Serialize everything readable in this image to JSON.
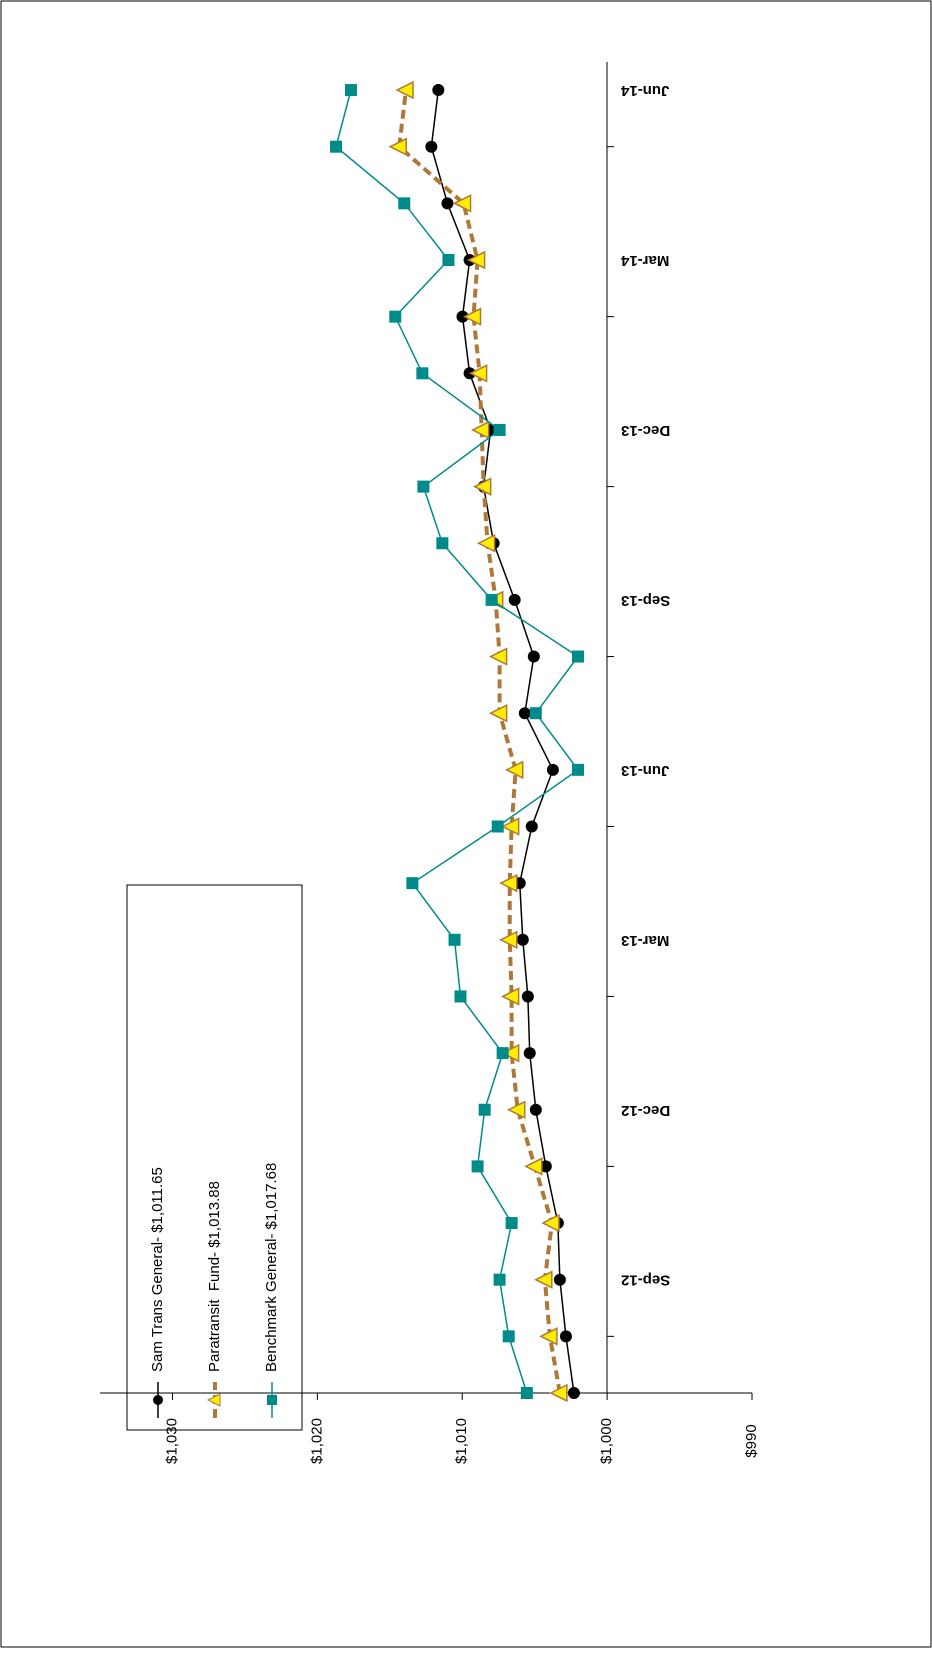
{
  "chart_data": {
    "type": "line",
    "categories": [
      null,
      null,
      "Sep-12",
      null,
      null,
      "Dec-12",
      null,
      null,
      "Mar-13",
      null,
      null,
      "Jun-13",
      null,
      null,
      "Sep-13",
      null,
      null,
      "Dec-13",
      null,
      null,
      "Mar-14",
      null,
      null,
      "Jun-14"
    ],
    "series": [
      {
        "name": "Sam Trans General- $1,011.65",
        "color": "#000000",
        "marker": "circle",
        "values": [
          1002.29,
          1002.84,
          1003.26,
          1003.4,
          1004.23,
          1004.92,
          1005.34,
          1005.47,
          1005.82,
          1006.03,
          1005.2,
          1003.74,
          1005.68,
          1005.06,
          1006.38,
          1007.83,
          1008.52,
          1008.04,
          1009.49,
          1009.98,
          1009.49,
          1011.02,
          1012.13,
          1011.65
        ]
      },
      {
        "name": "Paratransit  Fund- $1,013.88",
        "color": "#b07838",
        "marker": "triangle",
        "values": [
          1003.26,
          1003.95,
          1004.3,
          1003.81,
          1004.99,
          1006.17,
          1006.59,
          1006.59,
          1006.72,
          1006.72,
          1006.59,
          1006.31,
          1007.42,
          1007.42,
          1007.69,
          1008.25,
          1008.52,
          1008.66,
          1008.8,
          1009.22,
          1008.94,
          1009.91,
          1014.35,
          1013.88
        ]
      },
      {
        "name": "Benchmark General- $1,017.68",
        "color": "#008b8b",
        "marker": "square",
        "values": [
          1005.54,
          1006.79,
          1007.42,
          1006.59,
          1008.94,
          1008.45,
          1007.21,
          1010.12,
          1010.53,
          1013.44,
          1007.55,
          1002.01,
          1004.92,
          1002.01,
          1007.97,
          1011.37,
          1012.68,
          1007.42,
          1012.75,
          1014.62,
          1010.95,
          1014.0,
          1018.71,
          1017.68
        ]
      }
    ],
    "ylim": [
      990,
      1035
    ],
    "yticks": [
      {
        "value": 990,
        "label": "$990"
      },
      {
        "value": 1000,
        "label": "$1,000"
      },
      {
        "value": 1010,
        "label": "$1,010"
      },
      {
        "value": 1020,
        "label": "$1,020"
      },
      {
        "value": 1030,
        "label": "$1,030"
      }
    ]
  }
}
